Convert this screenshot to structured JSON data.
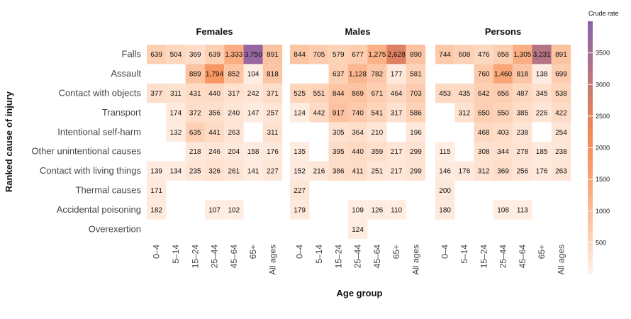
{
  "chart_data": {
    "type": "heatmap",
    "xlabel": "Age  group",
    "ylabel": "Ranked cause of injury",
    "legend_title": "Crude rate",
    "legend_ticks": [
      500,
      1000,
      1500,
      2000,
      2500,
      3000,
      3500
    ],
    "color_range": [
      0,
      4000
    ],
    "colors": [
      "#fff3ec",
      "#fdd3b8",
      "#fbb68e",
      "#f99a66",
      "#f28752",
      "#cf7b6e",
      "#a8708f",
      "#8a62ab"
    ],
    "x_categories": [
      "0–4",
      "5–14",
      "15–24",
      "25–44",
      "45–64",
      "65+",
      "All ages"
    ],
    "y_categories": [
      "Falls",
      "Assault",
      "Contact with objects",
      "Transport",
      "Intentional self-harm",
      "Other unintentional causes",
      "Contact with living things",
      "Thermal causes",
      "Accidental poisoning",
      "Overexertion"
    ],
    "panels": [
      {
        "name": "Females",
        "values": [
          [
            639,
            504,
            369,
            639,
            1333,
            3750,
            891
          ],
          [
            null,
            null,
            889,
            1794,
            852,
            104,
            818
          ],
          [
            377,
            311,
            431,
            440,
            317,
            242,
            371
          ],
          [
            null,
            174,
            372,
            356,
            240,
            147,
            257
          ],
          [
            null,
            132,
            635,
            441,
            263,
            null,
            311
          ],
          [
            null,
            null,
            218,
            246,
            204,
            158,
            176
          ],
          [
            139,
            134,
            235,
            326,
            261,
            141,
            227
          ],
          [
            171,
            null,
            null,
            null,
            null,
            null,
            null
          ],
          [
            182,
            null,
            null,
            107,
            102,
            null,
            null
          ],
          [
            null,
            null,
            null,
            null,
            null,
            null,
            null
          ]
        ]
      },
      {
        "name": "Males",
        "values": [
          [
            844,
            705,
            579,
            677,
            1275,
            2628,
            890
          ],
          [
            null,
            null,
            637,
            1128,
            782,
            177,
            581
          ],
          [
            525,
            551,
            844,
            869,
            671,
            464,
            703
          ],
          [
            124,
            442,
            917,
            740,
            541,
            317,
            586
          ],
          [
            null,
            null,
            305,
            364,
            210,
            null,
            196
          ],
          [
            135,
            null,
            395,
            440,
            359,
            217,
            299
          ],
          [
            152,
            216,
            386,
            411,
            251,
            217,
            299
          ],
          [
            227,
            null,
            null,
            null,
            null,
            null,
            null
          ],
          [
            179,
            null,
            null,
            109,
            126,
            110,
            null
          ],
          [
            null,
            null,
            null,
            124,
            null,
            null,
            null
          ]
        ]
      },
      {
        "name": "Persons",
        "values": [
          [
            744,
            608,
            476,
            658,
            1305,
            3231,
            891
          ],
          [
            null,
            null,
            760,
            1460,
            818,
            138,
            699
          ],
          [
            453,
            435,
            642,
            656,
            487,
            345,
            538
          ],
          [
            null,
            312,
            650,
            550,
            385,
            226,
            422
          ],
          [
            null,
            null,
            468,
            403,
            238,
            null,
            254
          ],
          [
            115,
            null,
            308,
            344,
            278,
            185,
            238
          ],
          [
            146,
            176,
            312,
            369,
            256,
            176,
            263
          ],
          [
            200,
            null,
            null,
            null,
            null,
            null,
            null
          ],
          [
            180,
            null,
            null,
            108,
            113,
            null,
            null
          ],
          [
            null,
            null,
            null,
            null,
            null,
            null,
            null
          ]
        ]
      }
    ]
  }
}
